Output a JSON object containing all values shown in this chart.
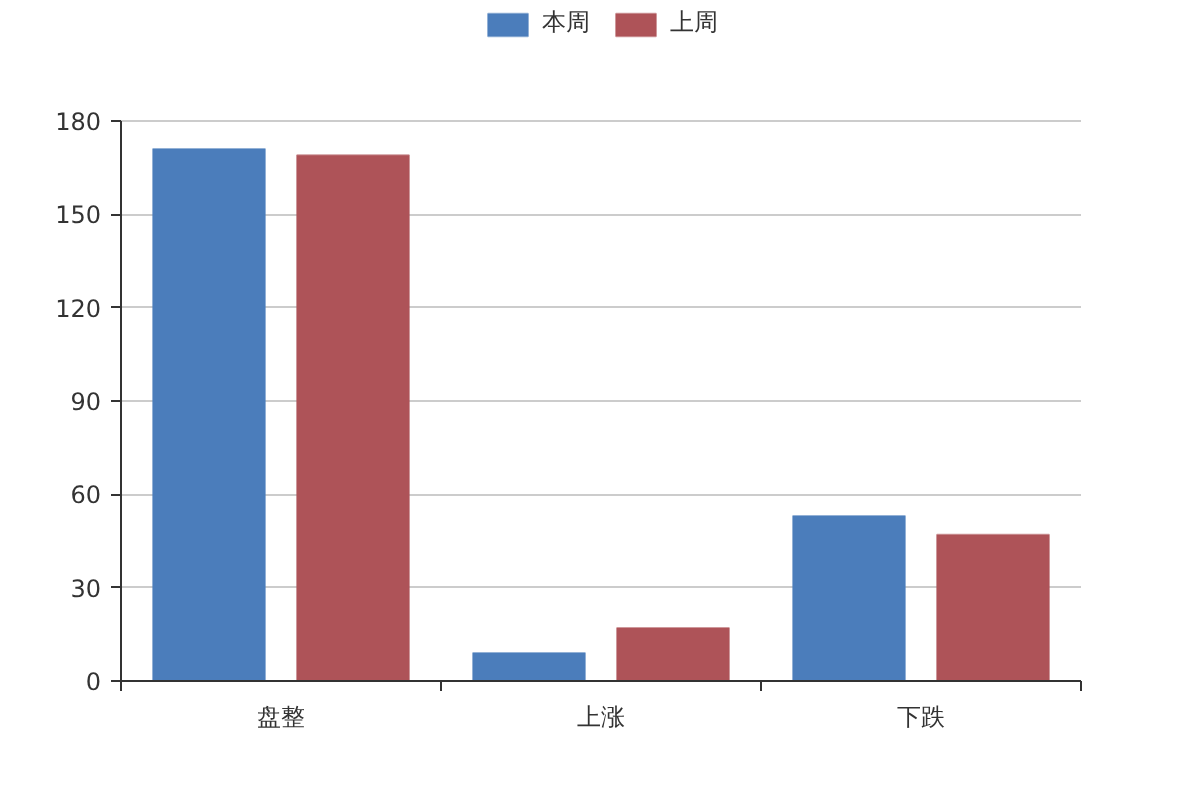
{
  "chart_data": {
    "type": "bar",
    "categories": [
      "盘整",
      "上涨",
      "下跌"
    ],
    "series": [
      {
        "name": "本周",
        "color": "#4b7dbb",
        "values": [
          171,
          9,
          53
        ]
      },
      {
        "name": "上周",
        "color": "#ae5358",
        "values": [
          169,
          17,
          47
        ]
      }
    ],
    "ylim": [
      0,
      180
    ],
    "yticks": [
      0,
      30,
      60,
      90,
      120,
      150,
      180
    ],
    "grid": "y",
    "legend": "top"
  }
}
